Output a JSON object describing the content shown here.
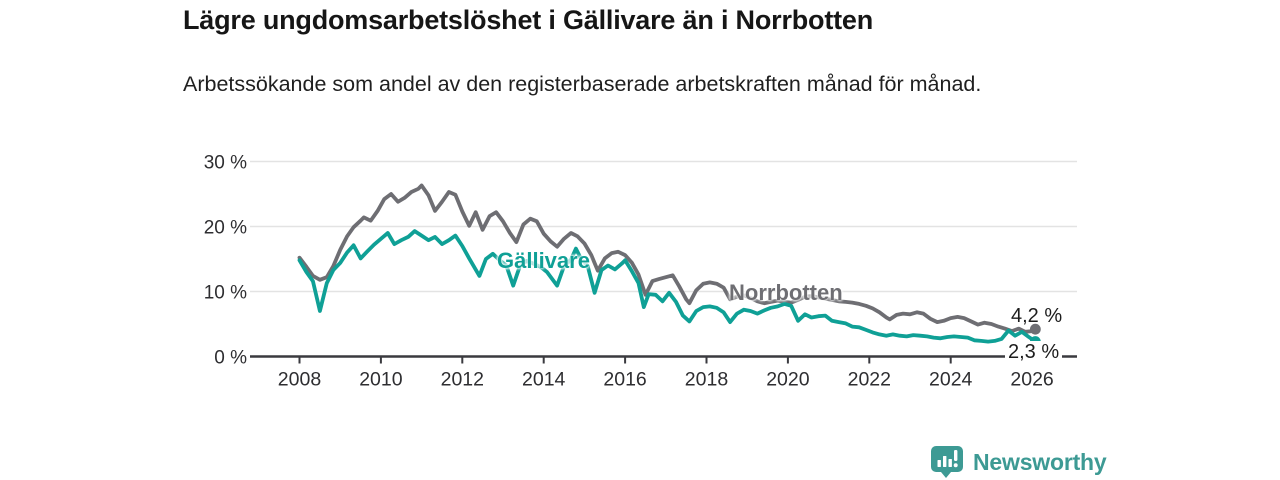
{
  "header": {
    "title": "Lägre ungdomsarbetslöshet i Gällivare än i Norrbotten",
    "subtitle": "Arbetssökande som andel av den registerbaserade arbetskraften månad för månad."
  },
  "chart": {
    "y_ticks": [
      {
        "value": 30,
        "label": "30 %"
      },
      {
        "value": 20,
        "label": "20 %"
      },
      {
        "value": 10,
        "label": "10 %"
      },
      {
        "value": 0,
        "label": "0 %"
      }
    ],
    "x_ticks": [
      {
        "value": 2008,
        "label": "2008"
      },
      {
        "value": 2010,
        "label": "2010"
      },
      {
        "value": 2012,
        "label": "2012"
      },
      {
        "value": 2014,
        "label": "2014"
      },
      {
        "value": 2016,
        "label": "2016"
      },
      {
        "value": 2018,
        "label": "2018"
      },
      {
        "value": 2020,
        "label": "2020"
      },
      {
        "value": 2022,
        "label": "2022"
      },
      {
        "value": 2024,
        "label": "2024"
      },
      {
        "value": 2026,
        "label": "2026"
      }
    ],
    "series_labels": {
      "gallivare": "Gällivare",
      "norrbotten": "Norrbotten"
    },
    "end_labels": {
      "norrbotten": "4,2 %",
      "gallivare": "2,3 %"
    },
    "grid_color": "#e3e3e3",
    "axis_color": "#3a3a3f",
    "tick_text_color": "#2e2e31"
  },
  "chart_data": {
    "type": "line",
    "title": "Lägre ungdomsarbetslöshet i Gällivare än i Norrbotten",
    "subtitle": "Arbetssökande som andel av den registerbaserade arbetskraften månad för månad.",
    "unit": "%",
    "x_range": [
      2008,
      2026.3
    ],
    "y_range": [
      0,
      30
    ],
    "grid": true,
    "legend_position": "inline-labels",
    "series": [
      {
        "name": "Norrbotten",
        "color": "#6e6e73",
        "end_value_label": "4,2 %",
        "end_value": 4.2,
        "points": [
          [
            2008.0,
            15.2
          ],
          [
            2008.17,
            13.8
          ],
          [
            2008.33,
            12.4
          ],
          [
            2008.5,
            11.8
          ],
          [
            2008.67,
            12.2
          ],
          [
            2008.83,
            13.9
          ],
          [
            2009.0,
            16.4
          ],
          [
            2009.17,
            18.5
          ],
          [
            2009.33,
            19.9
          ],
          [
            2009.5,
            20.9
          ],
          [
            2009.58,
            21.4
          ],
          [
            2009.75,
            20.9
          ],
          [
            2009.92,
            22.4
          ],
          [
            2010.08,
            24.2
          ],
          [
            2010.25,
            25.0
          ],
          [
            2010.42,
            23.8
          ],
          [
            2010.58,
            24.4
          ],
          [
            2010.75,
            25.3
          ],
          [
            2010.92,
            25.8
          ],
          [
            2011.0,
            26.3
          ],
          [
            2011.17,
            24.8
          ],
          [
            2011.33,
            22.4
          ],
          [
            2011.5,
            23.8
          ],
          [
            2011.67,
            25.3
          ],
          [
            2011.83,
            24.9
          ],
          [
            2012.0,
            22.3
          ],
          [
            2012.17,
            20.1
          ],
          [
            2012.33,
            22.2
          ],
          [
            2012.5,
            19.5
          ],
          [
            2012.67,
            21.6
          ],
          [
            2012.83,
            22.2
          ],
          [
            2013.0,
            20.8
          ],
          [
            2013.17,
            19.0
          ],
          [
            2013.33,
            17.6
          ],
          [
            2013.5,
            20.3
          ],
          [
            2013.67,
            21.2
          ],
          [
            2013.83,
            20.8
          ],
          [
            2014.0,
            18.9
          ],
          [
            2014.17,
            17.7
          ],
          [
            2014.33,
            16.9
          ],
          [
            2014.5,
            18.1
          ],
          [
            2014.67,
            19.0
          ],
          [
            2014.83,
            18.5
          ],
          [
            2015.0,
            17.4
          ],
          [
            2015.17,
            15.6
          ],
          [
            2015.33,
            13.2
          ],
          [
            2015.5,
            15.1
          ],
          [
            2015.67,
            15.9
          ],
          [
            2015.83,
            16.1
          ],
          [
            2016.0,
            15.6
          ],
          [
            2016.17,
            14.4
          ],
          [
            2016.33,
            12.6
          ],
          [
            2016.5,
            9.5
          ],
          [
            2016.67,
            11.6
          ],
          [
            2016.83,
            11.9
          ],
          [
            2017.0,
            12.2
          ],
          [
            2017.17,
            12.5
          ],
          [
            2017.33,
            10.8
          ],
          [
            2017.5,
            8.8
          ],
          [
            2017.58,
            8.2
          ],
          [
            2017.75,
            10.2
          ],
          [
            2017.92,
            11.2
          ],
          [
            2018.08,
            11.4
          ],
          [
            2018.25,
            11.2
          ],
          [
            2018.42,
            10.6
          ],
          [
            2018.58,
            8.8
          ],
          [
            2018.75,
            9.2
          ],
          [
            2018.92,
            9.4
          ],
          [
            2019.08,
            9.0
          ],
          [
            2019.25,
            8.5
          ],
          [
            2019.42,
            8.2
          ],
          [
            2019.58,
            8.4
          ],
          [
            2019.75,
            8.6
          ],
          [
            2019.92,
            8.4
          ],
          [
            2020.08,
            8.3
          ],
          [
            2020.25,
            8.7
          ],
          [
            2020.42,
            9.2
          ],
          [
            2020.58,
            9.3
          ],
          [
            2020.75,
            9.1
          ],
          [
            2020.92,
            8.9
          ],
          [
            2021.08,
            8.7
          ],
          [
            2021.25,
            8.5
          ],
          [
            2021.42,
            8.4
          ],
          [
            2021.58,
            8.3
          ],
          [
            2021.75,
            8.1
          ],
          [
            2021.92,
            7.8
          ],
          [
            2022.08,
            7.4
          ],
          [
            2022.25,
            6.8
          ],
          [
            2022.42,
            6.0
          ],
          [
            2022.5,
            5.7
          ],
          [
            2022.67,
            6.4
          ],
          [
            2022.83,
            6.6
          ],
          [
            2023.0,
            6.5
          ],
          [
            2023.17,
            6.8
          ],
          [
            2023.33,
            6.6
          ],
          [
            2023.5,
            5.8
          ],
          [
            2023.67,
            5.3
          ],
          [
            2023.83,
            5.5
          ],
          [
            2024.0,
            5.9
          ],
          [
            2024.17,
            6.1
          ],
          [
            2024.33,
            5.9
          ],
          [
            2024.5,
            5.4
          ],
          [
            2024.67,
            4.9
          ],
          [
            2024.83,
            5.2
          ],
          [
            2025.0,
            5.0
          ],
          [
            2025.17,
            4.6
          ],
          [
            2025.33,
            4.3
          ],
          [
            2025.5,
            3.9
          ],
          [
            2025.67,
            4.3
          ],
          [
            2025.83,
            3.8
          ],
          [
            2026.0,
            3.9
          ],
          [
            2026.08,
            4.2
          ]
        ]
      },
      {
        "name": "Gällivare",
        "color": "#0fa096",
        "end_value_label": "2,3 %",
        "end_value": 2.3,
        "points": [
          [
            2008.0,
            14.8
          ],
          [
            2008.17,
            13.0
          ],
          [
            2008.33,
            11.6
          ],
          [
            2008.5,
            7.0
          ],
          [
            2008.67,
            11.3
          ],
          [
            2008.83,
            13.3
          ],
          [
            2009.0,
            14.4
          ],
          [
            2009.17,
            16.0
          ],
          [
            2009.33,
            17.1
          ],
          [
            2009.5,
            15.1
          ],
          [
            2009.67,
            16.2
          ],
          [
            2009.83,
            17.2
          ],
          [
            2010.0,
            18.1
          ],
          [
            2010.17,
            19.0
          ],
          [
            2010.33,
            17.3
          ],
          [
            2010.5,
            17.9
          ],
          [
            2010.67,
            18.4
          ],
          [
            2010.83,
            19.3
          ],
          [
            2011.0,
            18.6
          ],
          [
            2011.17,
            17.9
          ],
          [
            2011.33,
            18.4
          ],
          [
            2011.5,
            17.3
          ],
          [
            2011.67,
            17.9
          ],
          [
            2011.83,
            18.6
          ],
          [
            2012.0,
            17.0
          ],
          [
            2012.17,
            15.1
          ],
          [
            2012.42,
            12.4
          ],
          [
            2012.58,
            15.0
          ],
          [
            2012.75,
            15.8
          ],
          [
            2012.92,
            14.8
          ],
          [
            2013.08,
            14.0
          ],
          [
            2013.25,
            10.9
          ],
          [
            2013.42,
            14.0
          ],
          [
            2013.58,
            14.7
          ],
          [
            2013.75,
            14.3
          ],
          [
            2013.92,
            13.8
          ],
          [
            2014.08,
            13.0
          ],
          [
            2014.33,
            10.9
          ],
          [
            2014.5,
            13.9
          ],
          [
            2014.67,
            14.9
          ],
          [
            2014.79,
            16.6
          ],
          [
            2014.92,
            15.0
          ],
          [
            2015.08,
            13.9
          ],
          [
            2015.25,
            9.8
          ],
          [
            2015.42,
            13.3
          ],
          [
            2015.58,
            14.0
          ],
          [
            2015.75,
            13.4
          ],
          [
            2015.92,
            14.3
          ],
          [
            2016.0,
            14.8
          ],
          [
            2016.17,
            13.1
          ],
          [
            2016.33,
            11.3
          ],
          [
            2016.46,
            7.6
          ],
          [
            2016.58,
            9.6
          ],
          [
            2016.75,
            9.5
          ],
          [
            2016.92,
            8.5
          ],
          [
            2017.08,
            9.8
          ],
          [
            2017.25,
            8.4
          ],
          [
            2017.42,
            6.3
          ],
          [
            2017.58,
            5.4
          ],
          [
            2017.75,
            7.0
          ],
          [
            2017.92,
            7.6
          ],
          [
            2018.08,
            7.7
          ],
          [
            2018.25,
            7.5
          ],
          [
            2018.42,
            6.8
          ],
          [
            2018.58,
            5.3
          ],
          [
            2018.75,
            6.6
          ],
          [
            2018.92,
            7.2
          ],
          [
            2019.08,
            7.0
          ],
          [
            2019.25,
            6.6
          ],
          [
            2019.42,
            7.1
          ],
          [
            2019.58,
            7.5
          ],
          [
            2019.75,
            7.7
          ],
          [
            2019.92,
            8.1
          ],
          [
            2020.08,
            7.8
          ],
          [
            2020.25,
            5.5
          ],
          [
            2020.42,
            6.5
          ],
          [
            2020.58,
            6.0
          ],
          [
            2020.75,
            6.2
          ],
          [
            2020.92,
            6.3
          ],
          [
            2021.08,
            5.5
          ],
          [
            2021.25,
            5.3
          ],
          [
            2021.42,
            5.1
          ],
          [
            2021.58,
            4.6
          ],
          [
            2021.75,
            4.5
          ],
          [
            2021.92,
            4.1
          ],
          [
            2022.08,
            3.7
          ],
          [
            2022.25,
            3.4
          ],
          [
            2022.42,
            3.2
          ],
          [
            2022.58,
            3.4
          ],
          [
            2022.75,
            3.2
          ],
          [
            2022.92,
            3.1
          ],
          [
            2023.08,
            3.3
          ],
          [
            2023.25,
            3.2
          ],
          [
            2023.42,
            3.1
          ],
          [
            2023.58,
            2.9
          ],
          [
            2023.75,
            2.8
          ],
          [
            2023.92,
            3.0
          ],
          [
            2024.08,
            3.1
          ],
          [
            2024.25,
            3.0
          ],
          [
            2024.42,
            2.9
          ],
          [
            2024.58,
            2.5
          ],
          [
            2024.75,
            2.4
          ],
          [
            2024.92,
            2.3
          ],
          [
            2025.08,
            2.4
          ],
          [
            2025.25,
            2.7
          ],
          [
            2025.42,
            4.0
          ],
          [
            2025.58,
            3.2
          ],
          [
            2025.75,
            3.8
          ],
          [
            2025.92,
            3.0
          ],
          [
            2026.08,
            2.3
          ]
        ]
      }
    ]
  },
  "footer": {
    "brand": "Newsworthy",
    "brand_color": "#3d9a94"
  }
}
